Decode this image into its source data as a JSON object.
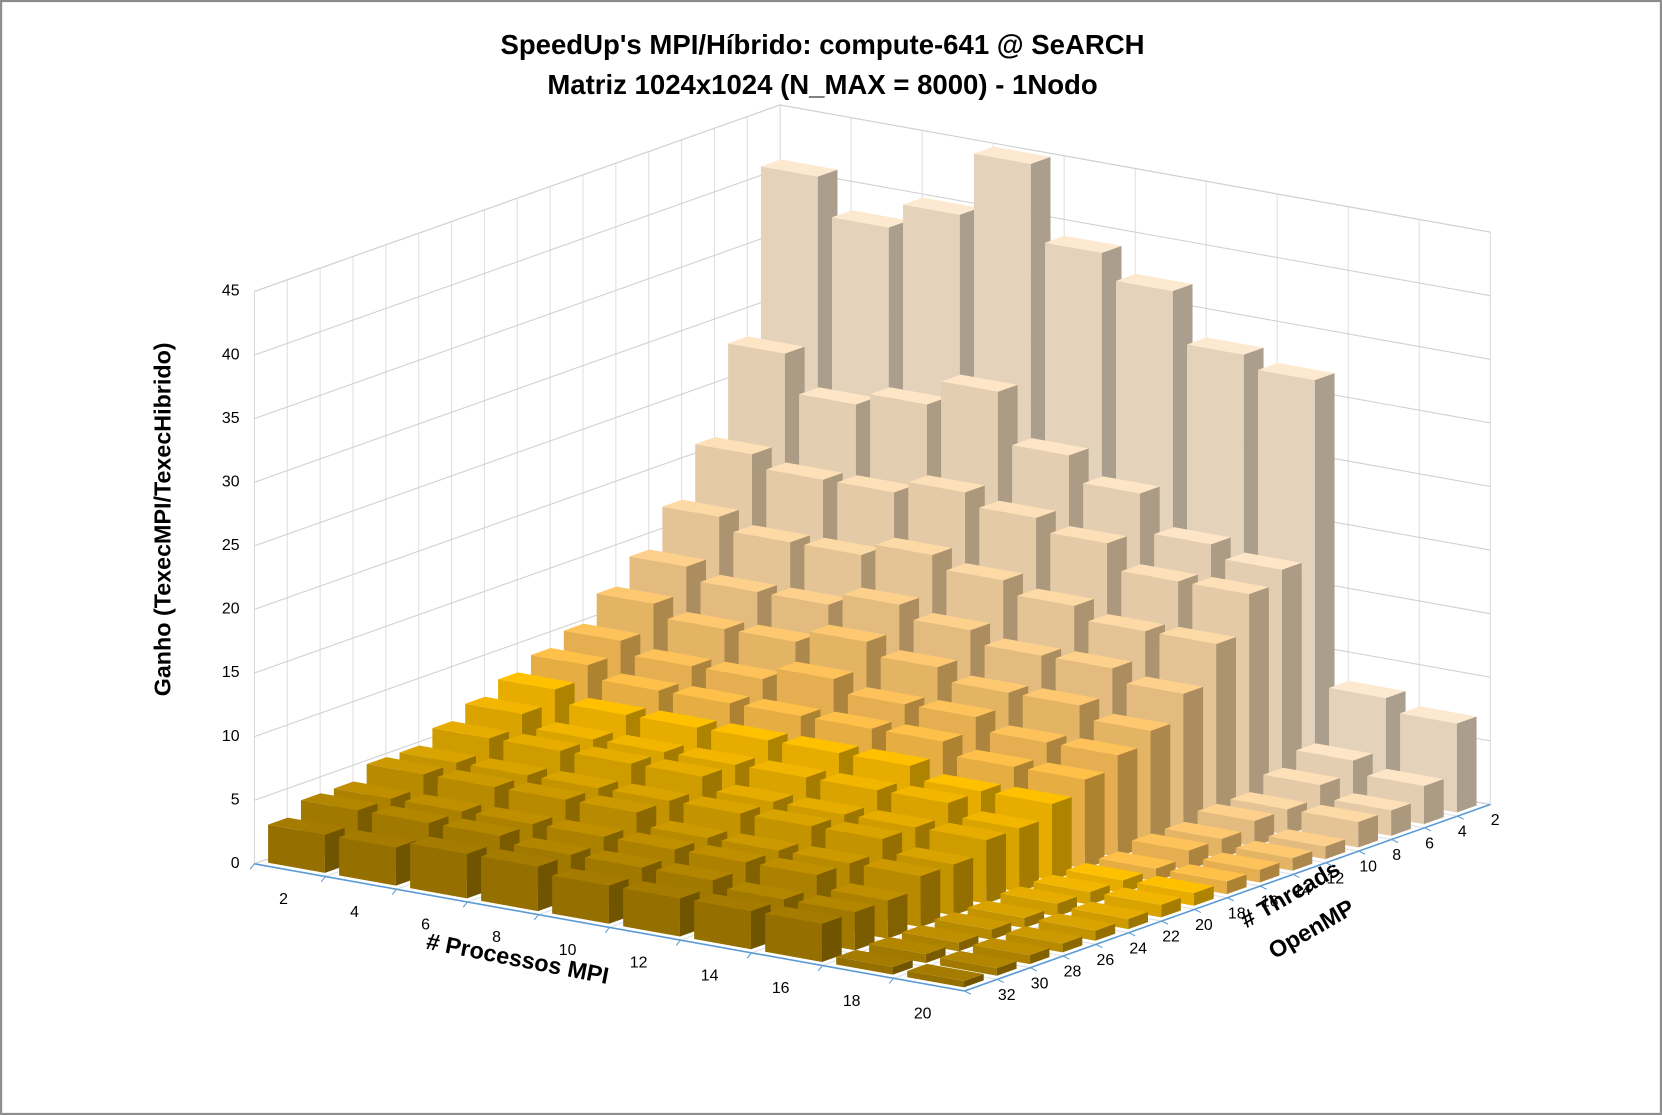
{
  "chart_data": {
    "type": "bar3d",
    "title": "SpeedUp's MPI/Híbrido: compute-641 @ SeARCH",
    "subtitle": "Matriz 1024x1024 (N_MAX = 8000) - 1Nodo",
    "y_label": "Ganho (TexecMPI/TexecHibrido)",
    "x_label": "# Processos MPI",
    "depth_label": [
      "# Threads",
      "OpenMP"
    ],
    "categories": [
      "2",
      "4",
      "6",
      "8",
      "10",
      "12",
      "14",
      "16",
      "18",
      "20"
    ],
    "ylim": [
      0,
      45
    ],
    "yticks": [
      0,
      5,
      10,
      15,
      20,
      25,
      30,
      35,
      40,
      45
    ],
    "grid": true,
    "series": [
      {
        "name": "2",
        "color": "#fde9d0",
        "values": [
          41,
          38,
          40,
          45,
          39,
          37,
          33,
          32,
          8,
          7
        ]
      },
      {
        "name": "4",
        "color": "#fde5c5",
        "values": [
          28,
          25,
          26,
          28,
          24,
          22,
          19,
          18,
          4,
          3
        ]
      },
      {
        "name": "6",
        "color": "#fde0b8",
        "values": [
          21,
          20,
          20,
          21,
          20,
          19,
          17,
          17,
          3,
          2
        ]
      },
      {
        "name": "8",
        "color": "#fdd9a5",
        "values": [
          17,
          16,
          16,
          17,
          16,
          15,
          14,
          14,
          2,
          2
        ]
      },
      {
        "name": "10",
        "color": "#fdd08c",
        "values": [
          14,
          13,
          13,
          14,
          13,
          12,
          12,
          11,
          2,
          1
        ]
      },
      {
        "name": "12",
        "color": "#fdc870",
        "values": [
          12,
          11,
          11,
          12,
          11,
          10,
          10,
          9,
          1.5,
          1
        ]
      },
      {
        "name": "14",
        "color": "#fec25a",
        "values": [
          10,
          9,
          9,
          10,
          9,
          9,
          8,
          8,
          1.5,
          1
        ]
      },
      {
        "name": "16",
        "color": "#ffc04a",
        "values": [
          9,
          8,
          8,
          8,
          8,
          8,
          7,
          7,
          1,
          1
        ]
      },
      {
        "name": "18",
        "color": "#ffc000",
        "values": [
          8,
          7,
          7,
          7,
          7,
          7,
          6,
          6,
          1,
          1
        ]
      },
      {
        "name": "20",
        "color": "#f2b600",
        "values": [
          7,
          6,
          6,
          6,
          6,
          6,
          6,
          5,
          1,
          1
        ]
      },
      {
        "name": "22",
        "color": "#e6ad00",
        "values": [
          6,
          6,
          6,
          6,
          5,
          5,
          5,
          5,
          1,
          0.8
        ]
      },
      {
        "name": "24",
        "color": "#d9a300",
        "values": [
          5,
          5,
          5,
          5,
          5,
          5,
          5,
          4,
          0.8,
          0.8
        ]
      },
      {
        "name": "26",
        "color": "#cc9900",
        "values": [
          5,
          5,
          5,
          5,
          4,
          4,
          4,
          4,
          0.8,
          0.7
        ]
      },
      {
        "name": "28",
        "color": "#bf8f00",
        "values": [
          4,
          4,
          4,
          4,
          4,
          4,
          4,
          3,
          0.7,
          0.7
        ]
      },
      {
        "name": "30",
        "color": "#b38600",
        "values": [
          4,
          4,
          4,
          3.5,
          3.5,
          3.5,
          3,
          3,
          0.7,
          0.6
        ]
      },
      {
        "name": "32",
        "color": "#a67c00",
        "values": [
          3,
          3,
          3.5,
          3.5,
          3,
          3,
          3,
          3,
          0.6,
          0.5
        ]
      }
    ]
  }
}
